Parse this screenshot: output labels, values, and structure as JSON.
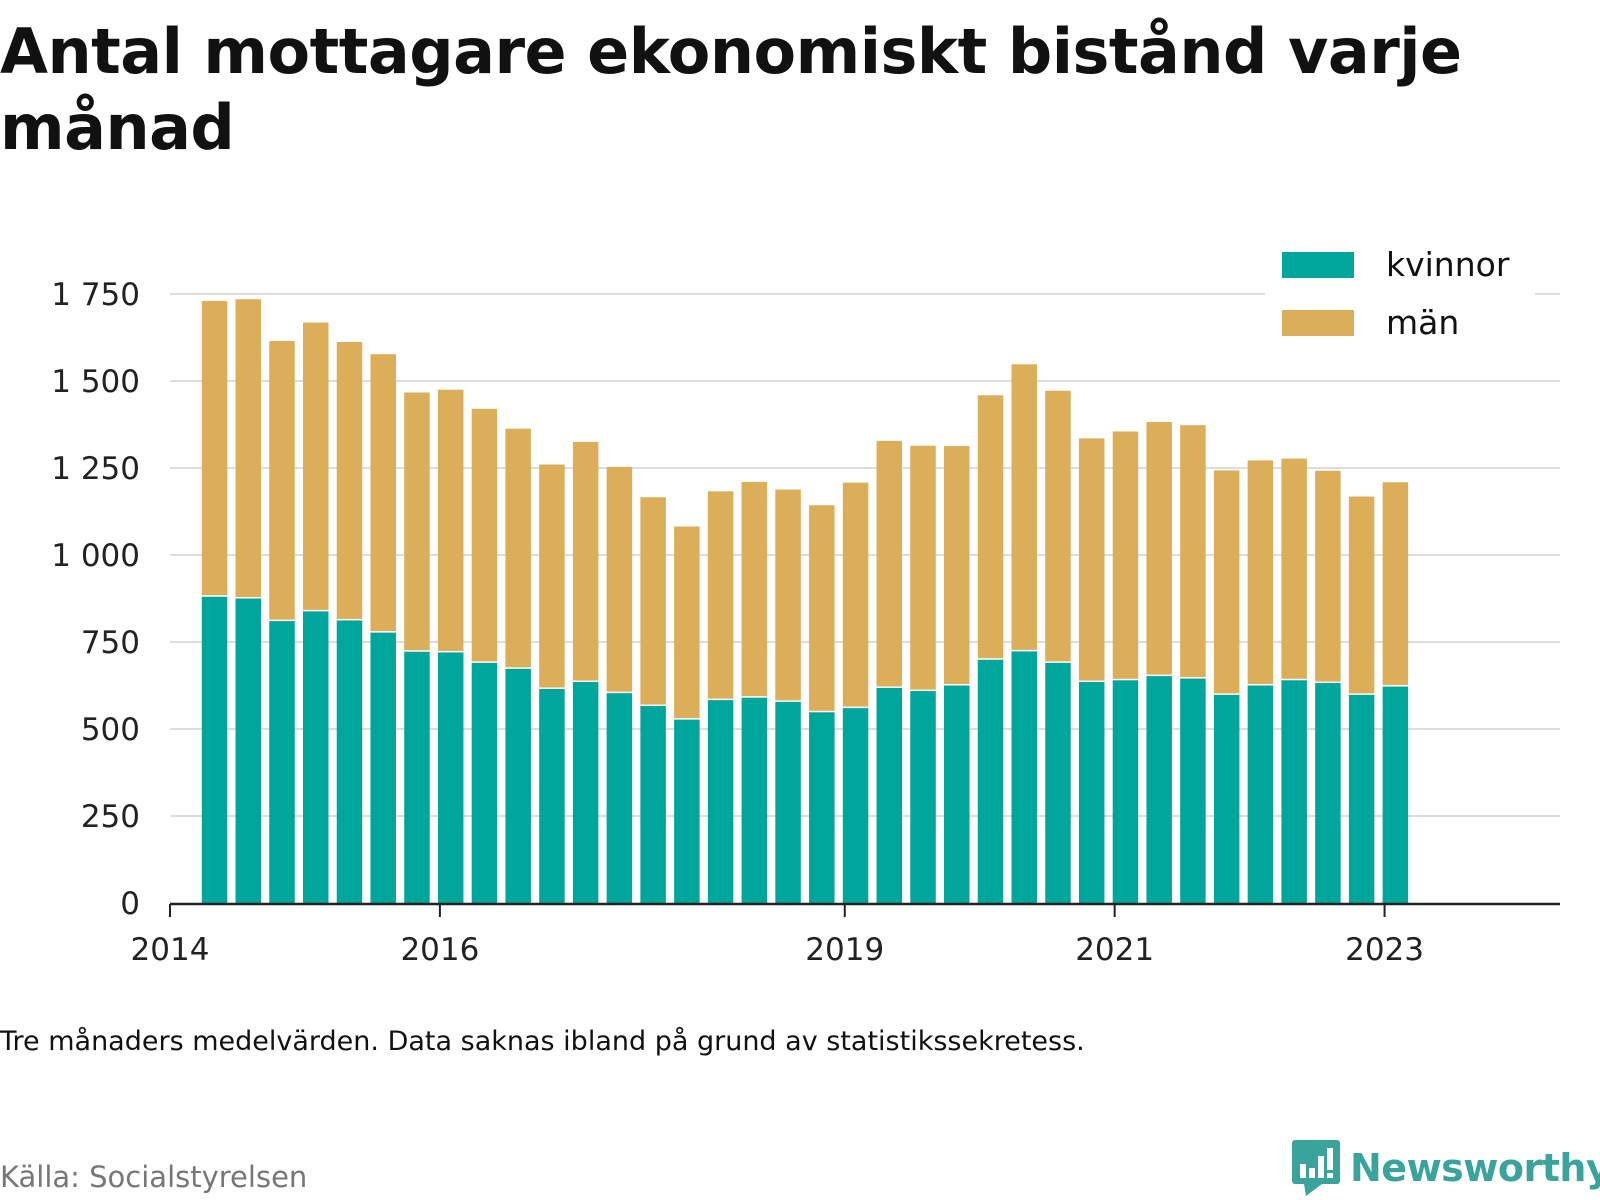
{
  "title": "Antal mottagare ekonomiskt bistånd varje månad",
  "note": "Tre månaders medelvärden. Data saknas ibland på grund av statistikssekretess.",
  "source": "Källa: Socialstyrelsen",
  "brand": {
    "name": "Newsworthy",
    "logo_icon": "bar-chart-speech-bubble-icon",
    "color": "#3aa39c"
  },
  "chart_data": {
    "type": "bar",
    "stacked": true,
    "title": "Antal mottagare ekonomiskt bistånd varje månad",
    "xlabel": "",
    "ylabel": "",
    "ylim": [
      0,
      1750
    ],
    "yticks": [
      0,
      250,
      500,
      750,
      1000,
      1250,
      1500,
      1750
    ],
    "ytick_labels": [
      "0",
      "250",
      "500",
      "750",
      "1 000",
      "1 250",
      "1 500",
      "1 750"
    ],
    "xlim": [
      2014.0,
      2024.3
    ],
    "xticks": [
      2014,
      2016,
      2019,
      2021,
      2023
    ],
    "xtick_labels": [
      "2014",
      "2016",
      "2019",
      "2021",
      "2023"
    ],
    "grid": true,
    "legend_position": "top-right",
    "x": [
      2014.33,
      2014.58,
      2014.83,
      2015.08,
      2015.33,
      2015.58,
      2015.83,
      2016.08,
      2016.33,
      2016.58,
      2016.83,
      2017.08,
      2017.33,
      2017.58,
      2017.83,
      2018.08,
      2018.33,
      2018.58,
      2018.83,
      2019.08,
      2019.33,
      2019.58,
      2019.83,
      2020.08,
      2020.33,
      2020.58,
      2020.83,
      2021.08,
      2021.33,
      2021.58,
      2021.83,
      2022.08,
      2022.33,
      2022.58,
      2022.83,
      2023.08
    ],
    "series": [
      {
        "name": "kvinnor",
        "color": "#00a69c",
        "values": [
          880,
          875,
          810,
          838,
          812,
          777,
          722,
          720,
          690,
          673,
          615,
          635,
          603,
          566,
          527,
          583,
          590,
          578,
          548,
          560,
          618,
          609,
          625,
          699,
          723,
          690,
          635,
          640,
          652,
          645,
          598,
          625,
          640,
          632,
          598,
          622
        ]
      },
      {
        "name": "män",
        "color": "#dcae5a",
        "values": [
          850,
          860,
          805,
          830,
          800,
          800,
          745,
          755,
          730,
          690,
          645,
          690,
          650,
          600,
          555,
          600,
          620,
          610,
          595,
          648,
          710,
          705,
          688,
          760,
          825,
          782,
          700,
          715,
          730,
          728,
          645,
          647,
          637,
          610,
          570,
          587
        ]
      }
    ]
  }
}
